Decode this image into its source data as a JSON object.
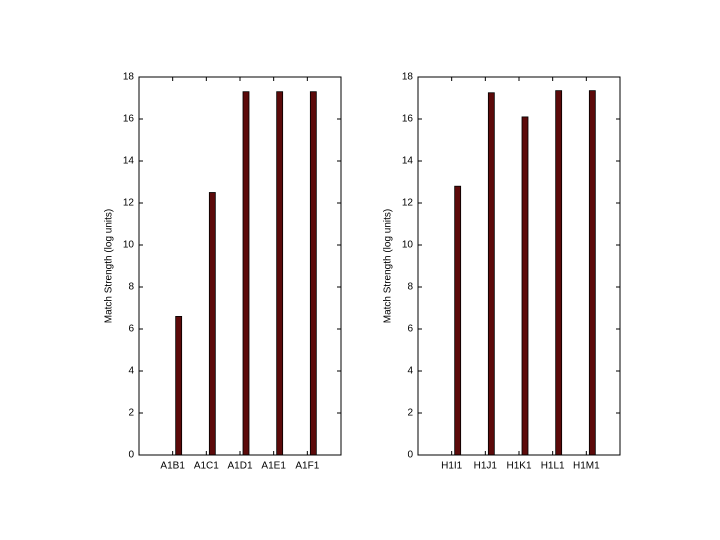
{
  "chart_data": [
    {
      "type": "bar",
      "ylabel": "Match Strength (log units)",
      "categories": [
        "A1B1",
        "A1C1",
        "A1D1",
        "A1E1",
        "A1F1"
      ],
      "values": [
        6.6,
        12.5,
        17.3,
        17.3,
        17.3
      ],
      "color": "#5c0a0a",
      "ylim": [
        0,
        18
      ],
      "yticks": [
        0,
        2,
        4,
        6,
        8,
        10,
        12,
        14,
        16,
        18
      ]
    },
    {
      "type": "bar",
      "ylabel": "Match Strength (log units)",
      "categories": [
        "H1I1",
        "H1J1",
        "H1K1",
        "H1L1",
        "H1M1"
      ],
      "values": [
        12.8,
        17.25,
        16.1,
        17.35,
        17.35
      ],
      "color": "#5c0a0a",
      "ylim": [
        0,
        18
      ],
      "yticks": [
        0,
        2,
        4,
        6,
        8,
        10,
        12,
        14,
        16,
        18
      ]
    }
  ]
}
